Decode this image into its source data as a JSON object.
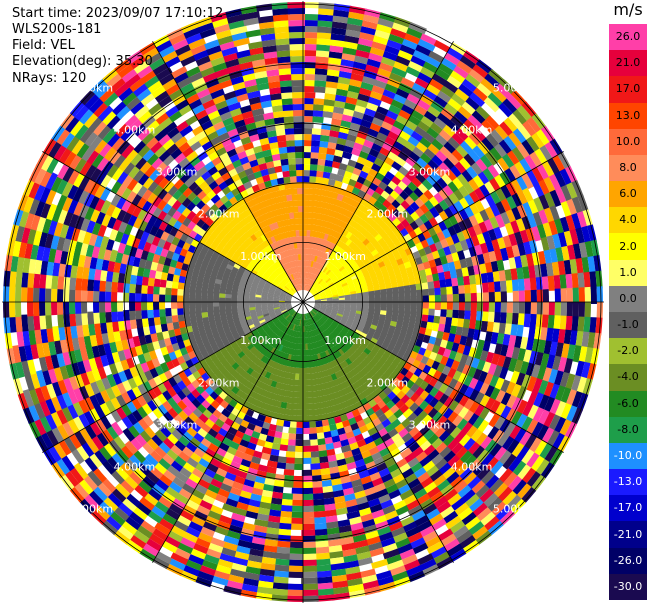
{
  "info": {
    "start_time": "Start time: 2023/09/07 17:10:12",
    "station": "WLS200s-181",
    "field": "Field: VEL",
    "elevation": "Elevation(deg): 35.30",
    "nrays": "NRays: 120"
  },
  "colorbar": {
    "unit": "m/s",
    "levels": [
      {
        "label": "26.0",
        "color": "#ff3fa8"
      },
      {
        "label": "21.0",
        "color": "#e6003c"
      },
      {
        "label": "17.0",
        "color": "#f01818"
      },
      {
        "label": "13.0",
        "color": "#ff4500"
      },
      {
        "label": "10.0",
        "color": "#ff6a3a"
      },
      {
        "label": "8.0",
        "color": "#ff8c5a"
      },
      {
        "label": "6.0",
        "color": "#ffa500"
      },
      {
        "label": "4.0",
        "color": "#ffd700"
      },
      {
        "label": "2.0",
        "color": "#ffff00"
      },
      {
        "label": "1.0",
        "color": "#ffff66"
      },
      {
        "label": "0.0",
        "color": "#808080"
      },
      {
        "label": "-1.0",
        "color": "#606060"
      },
      {
        "label": "-2.0",
        "color": "#a0c030"
      },
      {
        "label": "-4.0",
        "color": "#6b8e23"
      },
      {
        "label": "-6.0",
        "color": "#228b22"
      },
      {
        "label": "-8.0",
        "color": "#1e9e4a"
      },
      {
        "label": "-10.0",
        "color": "#1e90ff"
      },
      {
        "label": "-13.0",
        "color": "#1a1aff"
      },
      {
        "label": "-17.0",
        "color": "#0000cd"
      },
      {
        "label": "-21.0",
        "color": "#00008b"
      },
      {
        "label": "-26.0",
        "color": "#000066"
      },
      {
        "label": "-30.0",
        "color": "#1a0a50"
      }
    ]
  },
  "chart_data": {
    "type": "heatmap",
    "subtype": "radar-ppi",
    "field": "VEL",
    "units": "m/s",
    "rays": 120,
    "range_rings": [
      {
        "label": "1.00km"
      },
      {
        "label": "2.00km"
      },
      {
        "label": "3.00km"
      },
      {
        "label": "4.00km"
      },
      {
        "label": "5.00km"
      }
    ],
    "azimuth_spokes_deg": [
      0,
      30,
      60,
      90,
      120,
      150,
      180,
      210,
      240,
      270,
      300,
      330
    ],
    "sectors": [
      {
        "azimuth_from": 330,
        "azimuth_to": 30,
        "inner_velocity": 8.0,
        "outer_velocity": 6.0
      },
      {
        "azimuth_from": 30,
        "azimuth_to": 80,
        "inner_velocity": 2.0,
        "outer_velocity": 4.0
      },
      {
        "azimuth_from": 80,
        "azimuth_to": 120,
        "inner_velocity": 0.0,
        "outer_velocity": -1.0
      },
      {
        "azimuth_from": 120,
        "azimuth_to": 240,
        "inner_velocity": -6.0,
        "outer_velocity": -4.0
      },
      {
        "azimuth_from": 240,
        "azimuth_to": 300,
        "inner_velocity": 0.0,
        "outer_velocity": -1.0
      },
      {
        "azimuth_from": 300,
        "azimuth_to": 330,
        "inner_velocity": 2.0,
        "outer_velocity": 4.0
      }
    ],
    "noise_region": "beyond 2.00km ring — mixed velocities across the full colour scale"
  }
}
